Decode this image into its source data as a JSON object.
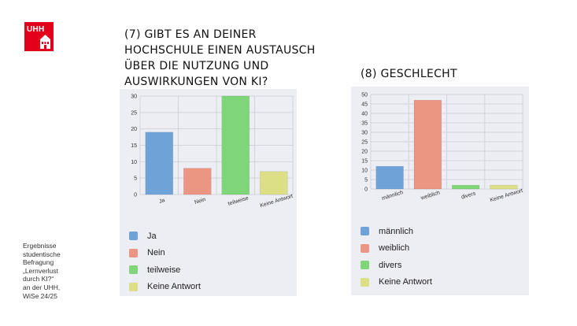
{
  "logo": {
    "text": "UHH"
  },
  "notes": [
    "Ergebnisse",
    "studentische",
    "Befragung",
    "„Lernverlust",
    "durch KI?“",
    "an der UHH,",
    "WiSe 24/25"
  ],
  "chart_data": [
    {
      "type": "bar",
      "title": "(7) Gibt es an deiner Hochschule einen Austausch über die Nutzung und Auswirkungen von KI?",
      "categories": [
        "Ja",
        "Nein",
        "teilweise",
        "Keine Antwort"
      ],
      "values": [
        19,
        8,
        30,
        7
      ],
      "colors": [
        "#6fa3d8",
        "#eb9583",
        "#7fd678",
        "#dddf86"
      ],
      "ylim": [
        0,
        30
      ],
      "ytick_step": 5,
      "grid": true,
      "legend_position": "bottom"
    },
    {
      "type": "bar",
      "title": "(8) Geschlecht",
      "categories": [
        "männlich",
        "weiblich",
        "divers",
        "Keine Antwort"
      ],
      "values": [
        12,
        47,
        2,
        2
      ],
      "colors": [
        "#6fa3d8",
        "#eb9583",
        "#7fd678",
        "#dddf86"
      ],
      "ylim": [
        0,
        50
      ],
      "ytick_step": 5,
      "grid": true,
      "legend_position": "bottom"
    }
  ]
}
